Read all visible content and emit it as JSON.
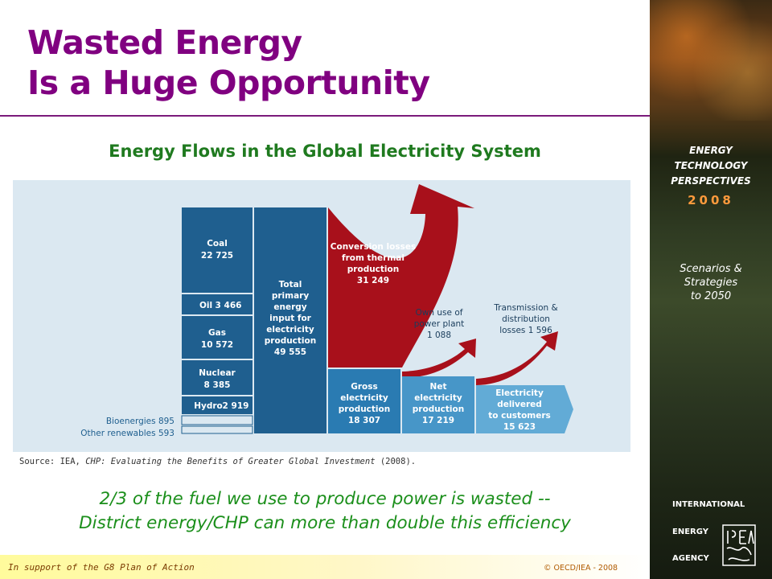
{
  "title": {
    "line1": "Wasted Energy",
    "line2": "Is a Huge Opportunity"
  },
  "subtitle": "Energy Flows in the Global Electricity System",
  "diagram": {
    "fuels": [
      {
        "name": "Coal",
        "value": "22 725"
      },
      {
        "name": "Oil",
        "value": "3 466"
      },
      {
        "name": "Gas",
        "value": "10 572"
      },
      {
        "name": "Nuclear",
        "value": "8 385"
      },
      {
        "name": "Hydro",
        "value": "2 919"
      }
    ],
    "small_inputs": [
      {
        "label": "Bioenergies 895"
      },
      {
        "label": "Other renewables 593"
      }
    ],
    "total": {
      "lines": [
        "Total",
        "primary",
        "energy",
        "input for",
        "electricity",
        "production"
      ],
      "value": "49 555"
    },
    "conversion_losses": {
      "lines": [
        "Conversion losses",
        "from thermal",
        "production"
      ],
      "value": "31 249"
    },
    "own_use": {
      "lines": [
        "Own use of",
        "power plant"
      ],
      "value": "1 088"
    },
    "transmission_losses": {
      "lines": [
        "Transmission &",
        "distribution"
      ],
      "value_line": "losses 1 596"
    },
    "gross": {
      "lines": [
        "Gross",
        "electricity",
        "production"
      ],
      "value": "18 307"
    },
    "net": {
      "lines": [
        "Net",
        "electricity",
        "production"
      ],
      "value": "17 219"
    },
    "delivered": {
      "lines": [
        "Electricity",
        "delivered",
        "to customers"
      ],
      "value": "15 623"
    },
    "colors": {
      "background": "#dbe8f1",
      "fuel_box": "#1f5f8f",
      "loss_red": "#a8101b",
      "gross": "#2a7bb2",
      "net": "#4796c8",
      "delivered": "#62abd6",
      "small_label": "#1f5f8f"
    }
  },
  "source": {
    "prefix": "Source:  IEA, ",
    "italic": "CHP: Evaluating the Benefits of Greater Global Investment",
    "suffix": "  (2008)."
  },
  "message": {
    "line1": "2/3 of the fuel we use to produce power is wasted --",
    "line2": "District energy/CHP can more than double this efficiency"
  },
  "footer": {
    "support": "In support of the G8 Plan of Action",
    "copyright": "© OECD/IEA - 2008"
  },
  "sidebar": {
    "etp_line1": "ENERGY",
    "etp_line2": "TECHNOLOGY",
    "etp_line3": "PERSPECTIVES",
    "year": "2008",
    "scenarios_line1": "Scenarios &",
    "scenarios_line2": "Strategies",
    "scenarios_line3": "to 2050",
    "agency_line1": "INTERNATIONAL",
    "agency_line2": "ENERGY",
    "agency_line3": "AGENCY",
    "logo_icon": "iea-logo-icon"
  }
}
